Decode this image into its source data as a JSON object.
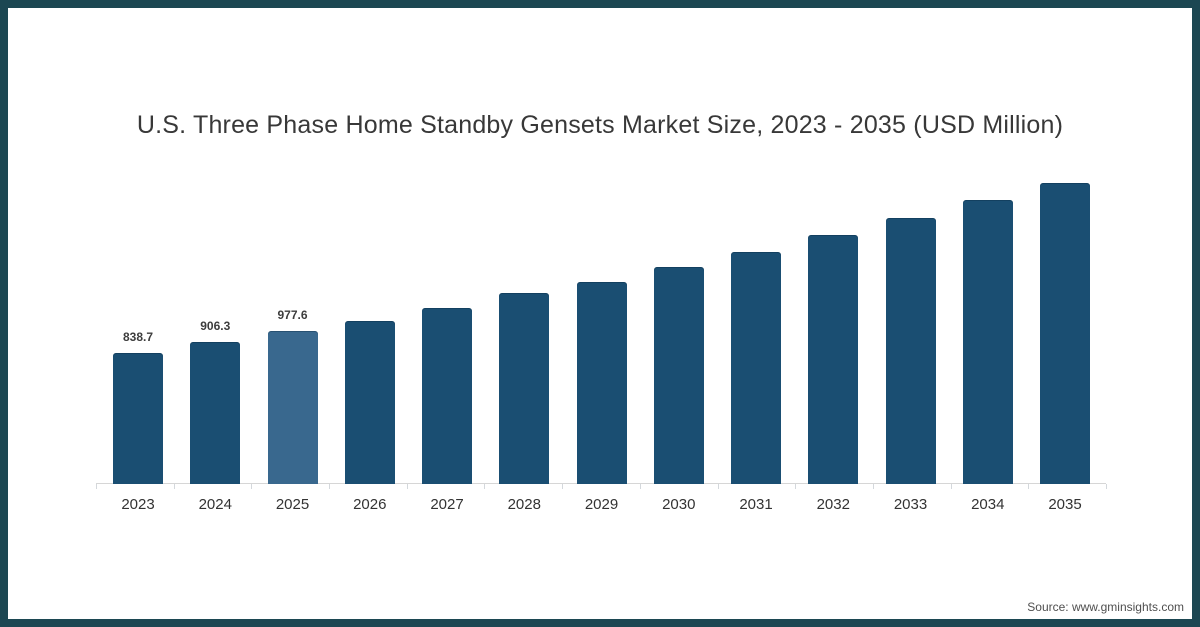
{
  "frame": {
    "border_color": "#1c4752",
    "background_color": "#ffffff"
  },
  "chart_data": {
    "type": "bar",
    "title": "U.S. Three Phase Home Standby Gensets Market Size, 2023 - 2035 (USD Million)",
    "xlabel": "",
    "ylabel": "",
    "categories": [
      "2023",
      "2024",
      "2025",
      "2026",
      "2027",
      "2028",
      "2029",
      "2030",
      "2031",
      "2032",
      "2033",
      "2034",
      "2035"
    ],
    "values": [
      838.7,
      906.3,
      977.6,
      1045,
      1125,
      1225,
      1295,
      1390,
      1485,
      1595,
      1705,
      1820,
      1930
    ],
    "data_labels": [
      "838.7",
      "906.3",
      "977.6",
      "",
      "",
      "",
      "",
      "",
      "",
      "",
      "",
      "",
      ""
    ],
    "ylim": [
      0,
      2100
    ],
    "grid": false,
    "legend": "none",
    "bar_color": "#1a4e72",
    "highlight_bar_color": "#39688e",
    "highlight_index": 2,
    "axis_color": "#d6d6d6"
  },
  "footer": {
    "source_label": "Source: www.gminsights.com"
  }
}
